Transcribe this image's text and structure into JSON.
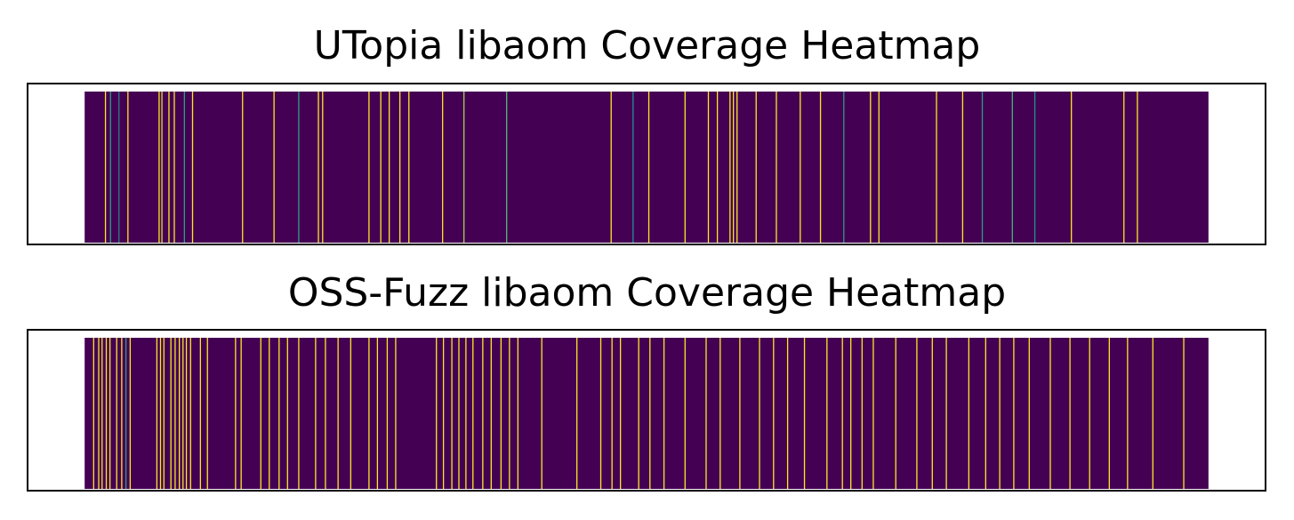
{
  "chart_data": [
    {
      "type": "heatmap",
      "title": "UTopia libaom Coverage Heatmap",
      "colormap": "viridis",
      "background_color": "#440154",
      "xlim": [
        -2,
        42
      ],
      "data_extent": [
        0,
        40
      ],
      "hits": [
        {
          "x": 0.72,
          "v": 1.0
        },
        {
          "x": 0.9,
          "v": 0.55
        },
        {
          "x": 1.2,
          "v": 0.4
        },
        {
          "x": 1.52,
          "v": 1.0
        },
        {
          "x": 2.63,
          "v": 1.0
        },
        {
          "x": 2.73,
          "v": 0.95
        },
        {
          "x": 2.98,
          "v": 1.0
        },
        {
          "x": 3.17,
          "v": 1.0
        },
        {
          "x": 3.53,
          "v": 0.55
        },
        {
          "x": 3.82,
          "v": 1.0
        },
        {
          "x": 5.6,
          "v": 1.0
        },
        {
          "x": 6.72,
          "v": 1.0
        },
        {
          "x": 7.6,
          "v": 0.55
        },
        {
          "x": 8.3,
          "v": 1.0
        },
        {
          "x": 8.45,
          "v": 1.0
        },
        {
          "x": 10.1,
          "v": 1.0
        },
        {
          "x": 10.52,
          "v": 1.0
        },
        {
          "x": 10.82,
          "v": 1.0
        },
        {
          "x": 11.2,
          "v": 1.0
        },
        {
          "x": 11.52,
          "v": 1.0
        },
        {
          "x": 12.72,
          "v": 1.0
        },
        {
          "x": 13.48,
          "v": 0.85
        },
        {
          "x": 15.0,
          "v": 0.7
        },
        {
          "x": 18.72,
          "v": 1.0
        },
        {
          "x": 19.5,
          "v": 0.5
        },
        {
          "x": 20.06,
          "v": 1.0
        },
        {
          "x": 21.35,
          "v": 1.0
        },
        {
          "x": 22.18,
          "v": 1.0
        },
        {
          "x": 22.5,
          "v": 1.0
        },
        {
          "x": 22.95,
          "v": 1.0
        },
        {
          "x": 23.07,
          "v": 1.0
        },
        {
          "x": 23.2,
          "v": 1.0
        },
        {
          "x": 23.88,
          "v": 1.0
        },
        {
          "x": 24.6,
          "v": 1.0
        },
        {
          "x": 25.45,
          "v": 1.0
        },
        {
          "x": 26.17,
          "v": 1.0
        },
        {
          "x": 27.0,
          "v": 0.55
        },
        {
          "x": 27.95,
          "v": 1.0
        },
        {
          "x": 28.25,
          "v": 1.0
        },
        {
          "x": 30.3,
          "v": 1.0
        },
        {
          "x": 31.23,
          "v": 1.0
        },
        {
          "x": 31.93,
          "v": 0.55
        },
        {
          "x": 33.0,
          "v": 0.65
        },
        {
          "x": 33.8,
          "v": 0.5
        },
        {
          "x": 35.1,
          "v": 1.0
        },
        {
          "x": 36.97,
          "v": 1.0
        },
        {
          "x": 37.45,
          "v": 1.0
        }
      ]
    },
    {
      "type": "heatmap",
      "title": "OSS-Fuzz libaom Coverage Heatmap",
      "colormap": "viridis",
      "background_color": "#440154",
      "xlim": [
        -2,
        42
      ],
      "data_extent": [
        0,
        40
      ],
      "hits": [
        {
          "x": 0.3,
          "v": 1.0
        },
        {
          "x": 0.48,
          "v": 1.0
        },
        {
          "x": 0.6,
          "v": 1.0
        },
        {
          "x": 0.75,
          "v": 1.0
        },
        {
          "x": 0.88,
          "v": 1.0
        },
        {
          "x": 1.12,
          "v": 1.0
        },
        {
          "x": 1.3,
          "v": 1.0
        },
        {
          "x": 1.45,
          "v": 0.55
        },
        {
          "x": 1.6,
          "v": 1.0
        },
        {
          "x": 2.55,
          "v": 1.0
        },
        {
          "x": 2.68,
          "v": 1.0
        },
        {
          "x": 2.8,
          "v": 1.0
        },
        {
          "x": 3.05,
          "v": 1.0
        },
        {
          "x": 3.2,
          "v": 1.0
        },
        {
          "x": 3.35,
          "v": 1.0
        },
        {
          "x": 3.48,
          "v": 1.0
        },
        {
          "x": 3.6,
          "v": 1.0
        },
        {
          "x": 3.75,
          "v": 1.0
        },
        {
          "x": 4.1,
          "v": 1.0
        },
        {
          "x": 4.35,
          "v": 1.0
        },
        {
          "x": 5.35,
          "v": 1.0
        },
        {
          "x": 5.55,
          "v": 1.0
        },
        {
          "x": 6.25,
          "v": 1.0
        },
        {
          "x": 6.55,
          "v": 1.0
        },
        {
          "x": 6.9,
          "v": 1.0
        },
        {
          "x": 7.2,
          "v": 1.0
        },
        {
          "x": 7.6,
          "v": 1.0
        },
        {
          "x": 8.2,
          "v": 1.0
        },
        {
          "x": 8.55,
          "v": 1.0
        },
        {
          "x": 9.0,
          "v": 1.0
        },
        {
          "x": 9.45,
          "v": 1.0
        },
        {
          "x": 10.1,
          "v": 1.0
        },
        {
          "x": 10.4,
          "v": 1.0
        },
        {
          "x": 10.75,
          "v": 1.0
        },
        {
          "x": 11.05,
          "v": 1.0
        },
        {
          "x": 12.5,
          "v": 1.0
        },
        {
          "x": 12.75,
          "v": 1.0
        },
        {
          "x": 13.05,
          "v": 1.0
        },
        {
          "x": 13.3,
          "v": 1.0
        },
        {
          "x": 13.55,
          "v": 1.0
        },
        {
          "x": 13.8,
          "v": 1.0
        },
        {
          "x": 14.15,
          "v": 1.0
        },
        {
          "x": 14.45,
          "v": 1.0
        },
        {
          "x": 14.8,
          "v": 1.0
        },
        {
          "x": 15.1,
          "v": 1.0
        },
        {
          "x": 15.4,
          "v": 1.0
        },
        {
          "x": 16.25,
          "v": 1.0
        },
        {
          "x": 17.5,
          "v": 1.0
        },
        {
          "x": 18.35,
          "v": 1.0
        },
        {
          "x": 18.75,
          "v": 1.0
        },
        {
          "x": 19.05,
          "v": 1.0
        },
        {
          "x": 19.7,
          "v": 1.0
        },
        {
          "x": 20.1,
          "v": 1.0
        },
        {
          "x": 20.6,
          "v": 1.0
        },
        {
          "x": 21.35,
          "v": 1.0
        },
        {
          "x": 22.1,
          "v": 1.0
        },
        {
          "x": 22.6,
          "v": 1.0
        },
        {
          "x": 23.3,
          "v": 1.0
        },
        {
          "x": 24.0,
          "v": 1.0
        },
        {
          "x": 24.5,
          "v": 1.0
        },
        {
          "x": 25.0,
          "v": 1.0
        },
        {
          "x": 25.6,
          "v": 1.0
        },
        {
          "x": 26.4,
          "v": 1.0
        },
        {
          "x": 26.95,
          "v": 1.0
        },
        {
          "x": 27.25,
          "v": 1.0
        },
        {
          "x": 27.65,
          "v": 1.0
        },
        {
          "x": 28.05,
          "v": 1.0
        },
        {
          "x": 28.85,
          "v": 1.0
        },
        {
          "x": 29.6,
          "v": 1.0
        },
        {
          "x": 30.15,
          "v": 1.0
        },
        {
          "x": 30.65,
          "v": 1.0
        },
        {
          "x": 31.45,
          "v": 1.0
        },
        {
          "x": 32.05,
          "v": 1.0
        },
        {
          "x": 32.55,
          "v": 1.0
        },
        {
          "x": 33.05,
          "v": 1.0
        },
        {
          "x": 33.6,
          "v": 1.0
        },
        {
          "x": 34.35,
          "v": 1.0
        },
        {
          "x": 35.05,
          "v": 1.0
        },
        {
          "x": 35.75,
          "v": 1.0
        },
        {
          "x": 36.45,
          "v": 1.0
        },
        {
          "x": 37.1,
          "v": 1.0
        },
        {
          "x": 38.0,
          "v": 1.0
        },
        {
          "x": 39.1,
          "v": 1.0
        }
      ]
    }
  ]
}
